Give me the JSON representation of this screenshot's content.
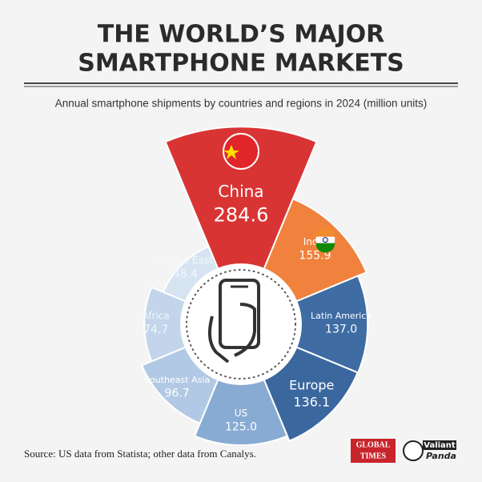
{
  "chart_data": {
    "type": "polar",
    "title": [
      "THE WORLD’S MAJOR",
      "SMARTPHONE MARKETS"
    ],
    "subtitle": "Annual smartphone shipments by countries and regions in 2024 (million units)",
    "categories": [
      "China",
      "India",
      "Latin America",
      "Europe",
      "US",
      "Southeast Asia",
      "Africa",
      "Middle East"
    ],
    "values": [
      284.6,
      155.9,
      137.0,
      136.1,
      125.0,
      96.7,
      74.7,
      48.4
    ],
    "value_labels": [
      "284.6",
      "155.9",
      "137.0",
      "136.1",
      "125.0",
      "96.7",
      "74.7",
      "48.4"
    ],
    "colors": [
      "#d83434",
      "#f0823e",
      "#3f6ca3",
      "#3a679e",
      "#88abd3",
      "#b1c9e4",
      "#c2d5ea",
      "#d6e3f1"
    ],
    "source": "Source: US data from Statista; other data from Canalys.",
    "logos": [
      "GLOBAL",
      "TIMES",
      "Valiant",
      "Panda"
    ]
  }
}
